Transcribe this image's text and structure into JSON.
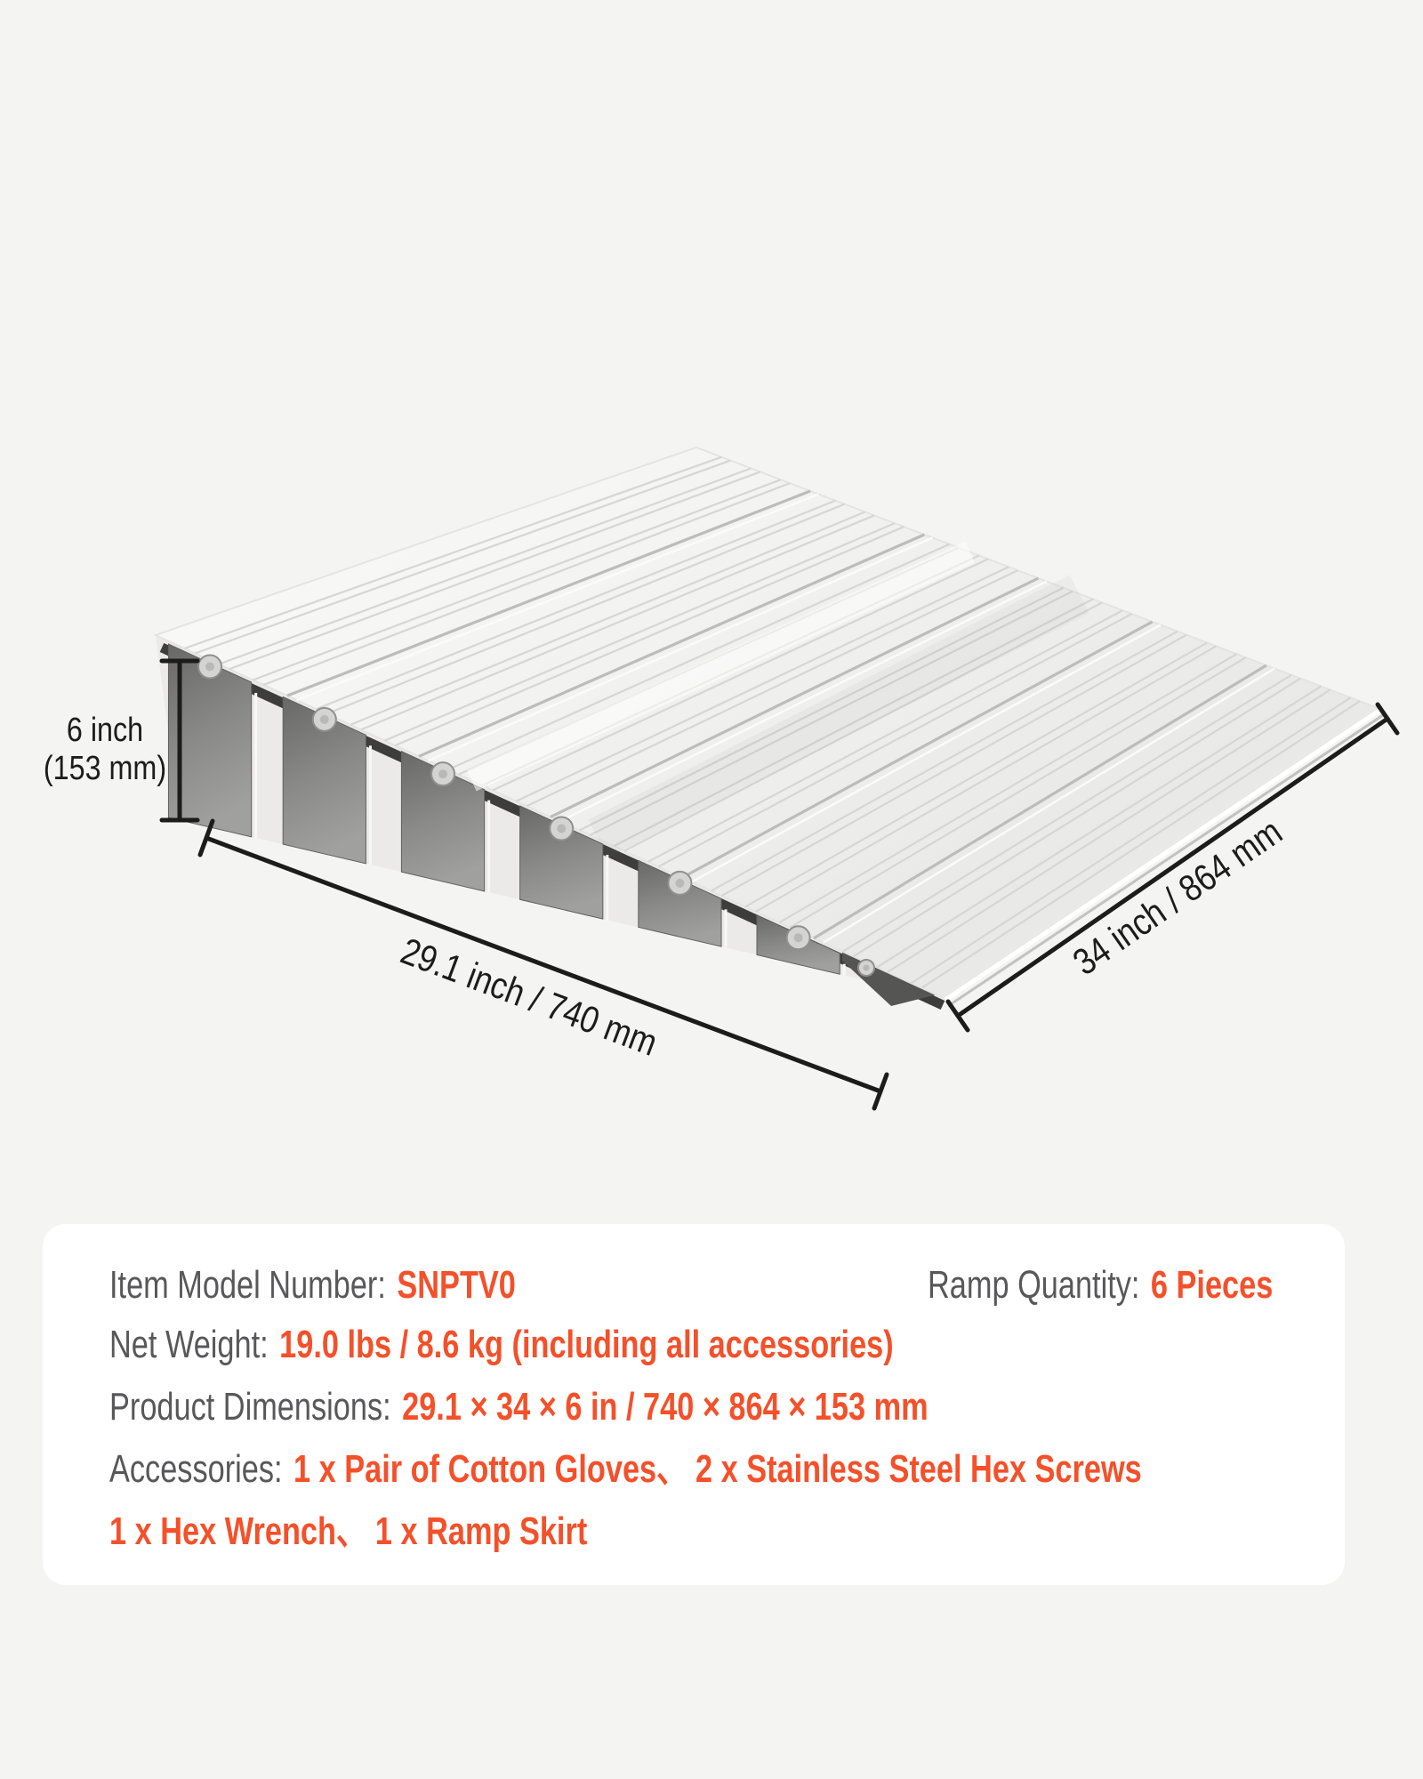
{
  "colors": {
    "background": "#f4f4f2",
    "card": "#ffffff",
    "accent": "#f4502a",
    "label_gray": "#58585a",
    "dimension_ink": "#1c1c1c"
  },
  "diagram": {
    "height_label_1": "6 inch",
    "height_label_2": "(153 mm)",
    "width_label": "29.1 inch / 740 mm",
    "depth_label": "34 inch / 864 mm",
    "ramp_pieces_shown": 6
  },
  "spec_card": {
    "row1_left": {
      "label": "Item Model Number:",
      "value": "SNPTV0"
    },
    "row1_right": {
      "label": "Ramp Quantity:",
      "value": "6 Pieces"
    },
    "row2": {
      "label": "Net Weight:",
      "value": "19.0 lbs / 8.6 kg (including all accessories)"
    },
    "row3": {
      "label": "Product Dimensions:",
      "value": "29.1 × 34 × 6 in / 740 × 864 × 153 mm"
    },
    "row4": {
      "label": "Accessories:",
      "value": "1 x Pair of Cotton Gloves、 2 x Stainless Steel Hex Screws"
    },
    "row5": {
      "value": "1 x Hex Wrench、 1 x Ramp Skirt"
    }
  }
}
